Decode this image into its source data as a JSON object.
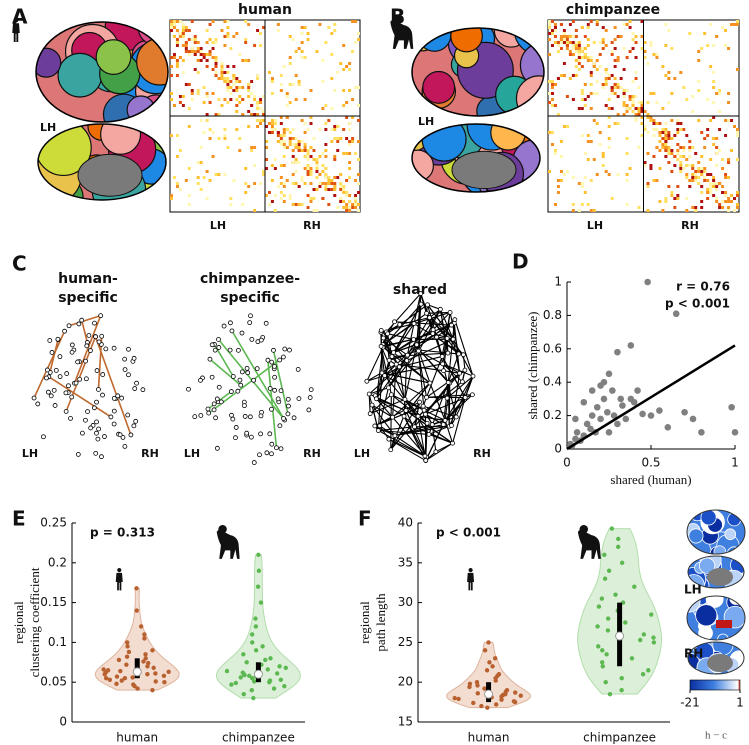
{
  "panel_a": {
    "label": "A",
    "title": "human",
    "brain_label": "LH",
    "matrix_labels": [
      "LH",
      "RH"
    ]
  },
  "panel_b": {
    "label": "B",
    "title": "chimpanzee",
    "brain_label": "LH",
    "matrix_labels": [
      "LH",
      "RH"
    ]
  },
  "panel_c": {
    "label": "C",
    "networks": [
      {
        "title": [
          "human-",
          "specific"
        ],
        "hemi_labels": [
          "LH",
          "RH"
        ]
      },
      {
        "title": [
          "chimpanzee-",
          "specific"
        ],
        "hemi_labels": [
          "LH",
          "RH"
        ]
      },
      {
        "title": [
          "shared"
        ],
        "hemi_labels": [
          "LH",
          "RH"
        ]
      }
    ]
  },
  "chart_data": [
    {
      "type": "scatter",
      "panel_label": "D",
      "xlabel": "shared (human)",
      "ylabel": "shared (chimpanzee)",
      "annotations": [
        "r = 0.76",
        "p < 0.001"
      ],
      "color": "#808080",
      "x": [
        0.02,
        0.03,
        0.05,
        0.06,
        0.08,
        0.1,
        0.12,
        0.14,
        0.15,
        0.17,
        0.18,
        0.2,
        0.22,
        0.24,
        0.25,
        0.27,
        0.28,
        0.3,
        0.32,
        0.33,
        0.35,
        0.38,
        0.4,
        0.42,
        0.45,
        0.5,
        0.55,
        0.6,
        0.65,
        0.7,
        0.75,
        0.8,
        0.98,
        1,
        0.48,
        0.38,
        0.3,
        0.25,
        0.22,
        0.2,
        0.15,
        0.1,
        0.05
      ],
      "y": [
        0.03,
        0.02,
        0.06,
        0.1,
        0.05,
        0.08,
        0.15,
        0.12,
        0.2,
        0.1,
        0.25,
        0.18,
        0.3,
        0.22,
        0.1,
        0.35,
        0.2,
        0.15,
        0.3,
        0.26,
        0.18,
        0.3,
        0.28,
        0.35,
        0.21,
        0.2,
        0.23,
        0.13,
        0.81,
        0.22,
        0.18,
        0.1,
        0.25,
        0.1,
        1,
        0.62,
        0.58,
        0.45,
        0.4,
        0.38,
        0.35,
        0.28,
        0.18
      ],
      "fit": {
        "x": [
          0,
          1
        ],
        "y": [
          0,
          0.62
        ],
        "color": "#000000"
      },
      "xlim": [
        0,
        1
      ],
      "ylim": [
        0,
        1
      ],
      "xticks": [
        0,
        0.5,
        1
      ],
      "yticks": [
        0,
        0.2,
        0.4,
        0.6,
        0.8,
        1
      ]
    },
    {
      "type": "violin",
      "panel_label": "E",
      "ylabel": [
        "regional",
        "clustering coefficient"
      ],
      "annotation": "p = 0.313",
      "categories": [
        "human",
        "chimpanzee"
      ],
      "groups": [
        {
          "color": "#b8602f",
          "fill": "#f3ddd0",
          "median": 0.063,
          "q1": 0.055,
          "q3": 0.08,
          "values": [
            0.04,
            0.042,
            0.045,
            0.047,
            0.048,
            0.05,
            0.051,
            0.052,
            0.053,
            0.055,
            0.055,
            0.056,
            0.057,
            0.058,
            0.06,
            0.06,
            0.061,
            0.062,
            0.063,
            0.064,
            0.065,
            0.066,
            0.068,
            0.07,
            0.072,
            0.074,
            0.076,
            0.078,
            0.08,
            0.082,
            0.085,
            0.088,
            0.09,
            0.095,
            0.1,
            0.105,
            0.11,
            0.12,
            0.14,
            0.168
          ]
        },
        {
          "color": "#5cb850",
          "fill": "#dcefd8",
          "median": 0.06,
          "q1": 0.05,
          "q3": 0.075,
          "values": [
            0.03,
            0.035,
            0.04,
            0.042,
            0.045,
            0.047,
            0.049,
            0.05,
            0.051,
            0.052,
            0.053,
            0.055,
            0.056,
            0.057,
            0.058,
            0.059,
            0.06,
            0.061,
            0.062,
            0.064,
            0.066,
            0.068,
            0.07,
            0.072,
            0.075,
            0.078,
            0.08,
            0.085,
            0.09,
            0.095,
            0.1,
            0.11,
            0.12,
            0.13,
            0.15,
            0.17,
            0.19,
            0.21
          ]
        }
      ],
      "ylim": [
        0,
        0.25
      ],
      "yticks": [
        0,
        0.05,
        0.1,
        0.15,
        0.2,
        0.25
      ]
    },
    {
      "type": "violin",
      "panel_label": "F",
      "ylabel": [
        "regional",
        "path length"
      ],
      "annotation": "p < 0.001",
      "categories": [
        "human",
        "chimpanzee"
      ],
      "groups": [
        {
          "color": "#b8602f",
          "fill": "#f3ddd0",
          "median": 18.5,
          "q1": 17.5,
          "q3": 20,
          "values": [
            16.8,
            17,
            17.2,
            17.4,
            17.5,
            17.6,
            17.8,
            17.9,
            18,
            18.1,
            18.2,
            18.3,
            18.4,
            18.5,
            18.6,
            18.7,
            18.8,
            19,
            19.2,
            19.4,
            19.6,
            19.8,
            20,
            20.2,
            20.5,
            20.8,
            21,
            21.5,
            22,
            22.5,
            23,
            24,
            25
          ]
        },
        {
          "color": "#5cb850",
          "fill": "#dcefd8",
          "median": 25.8,
          "q1": 22,
          "q3": 30,
          "values": [
            18.5,
            19,
            20,
            20.5,
            21,
            21.5,
            22,
            22.5,
            23,
            23.5,
            24,
            24.5,
            25,
            25.3,
            25.6,
            26,
            26.5,
            27,
            27.5,
            28,
            28.5,
            29,
            29.5,
            30,
            30.5,
            31,
            32,
            33,
            34,
            35,
            36,
            37,
            38,
            39.3
          ]
        }
      ],
      "ylim": [
        15,
        40
      ],
      "yticks": [
        15,
        20,
        25,
        30,
        35,
        40
      ],
      "colorbar": {
        "lim": [
          -21,
          1
        ],
        "ticks": [
          -21,
          1
        ],
        "label": "h − c",
        "colors": [
          "#0a2ea0",
          "#3f7fe0",
          "#ffffff",
          "#d01010"
        ],
        "hemi_labels": [
          "LH",
          "RH"
        ]
      }
    }
  ]
}
